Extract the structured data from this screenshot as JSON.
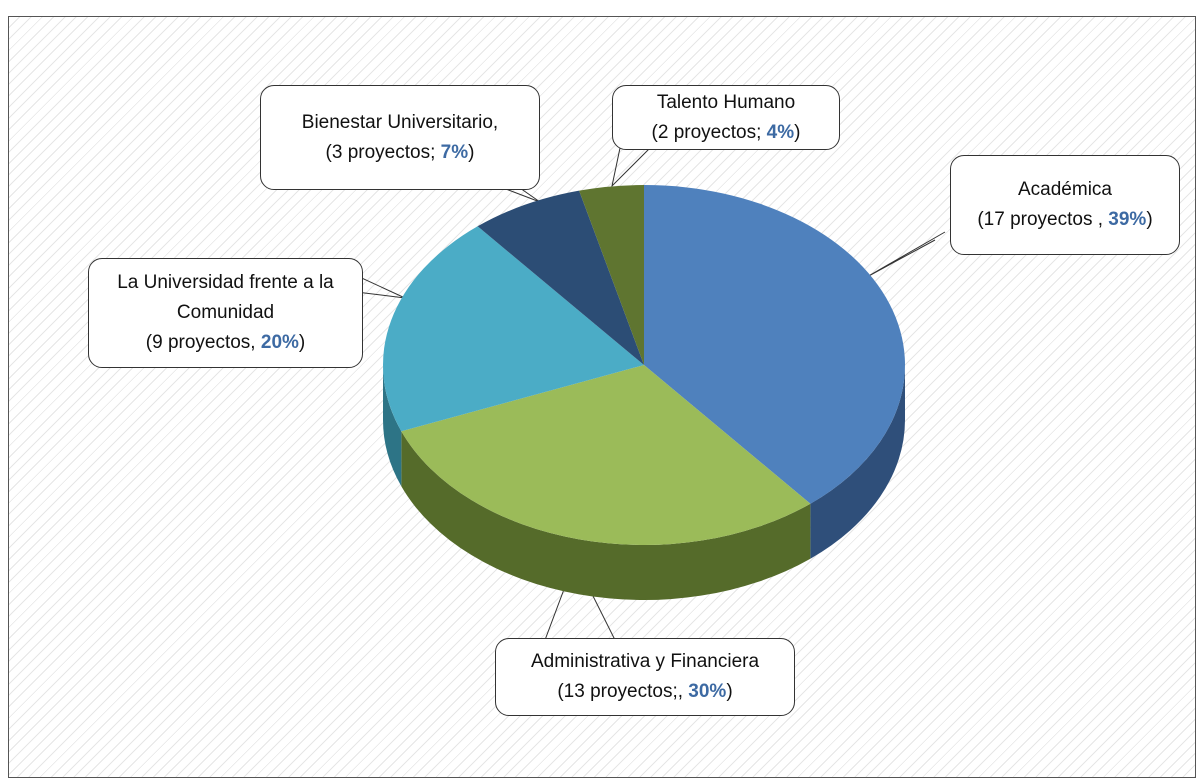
{
  "chart_data": {
    "type": "pie",
    "categories": [
      "Académica",
      "Administrativa y Financiera",
      "La Universidad frente a la Comunidad",
      "Bienestar Universitario,",
      "Talento Humano"
    ],
    "values": [
      39,
      30,
      20,
      7,
      4
    ],
    "value_labels": [
      "39%",
      "30%",
      "20%",
      "7%",
      "4%"
    ],
    "labels": [
      "(17 proyectos , ",
      "(13 proyectos;, ",
      "(9 proyectos, ",
      "(3 proyectos; ",
      "(2 proyectos; "
    ],
    "label_suffix": ")",
    "colors": [
      "#4f81bd",
      "#9bbb59",
      "#4bacc6",
      "#2c4d75",
      "#5f7530"
    ],
    "side_colors": [
      "#2f4f7a",
      "#556b2a",
      "#2d7486",
      "#1a2f48",
      "#3a4a1c"
    ]
  }
}
